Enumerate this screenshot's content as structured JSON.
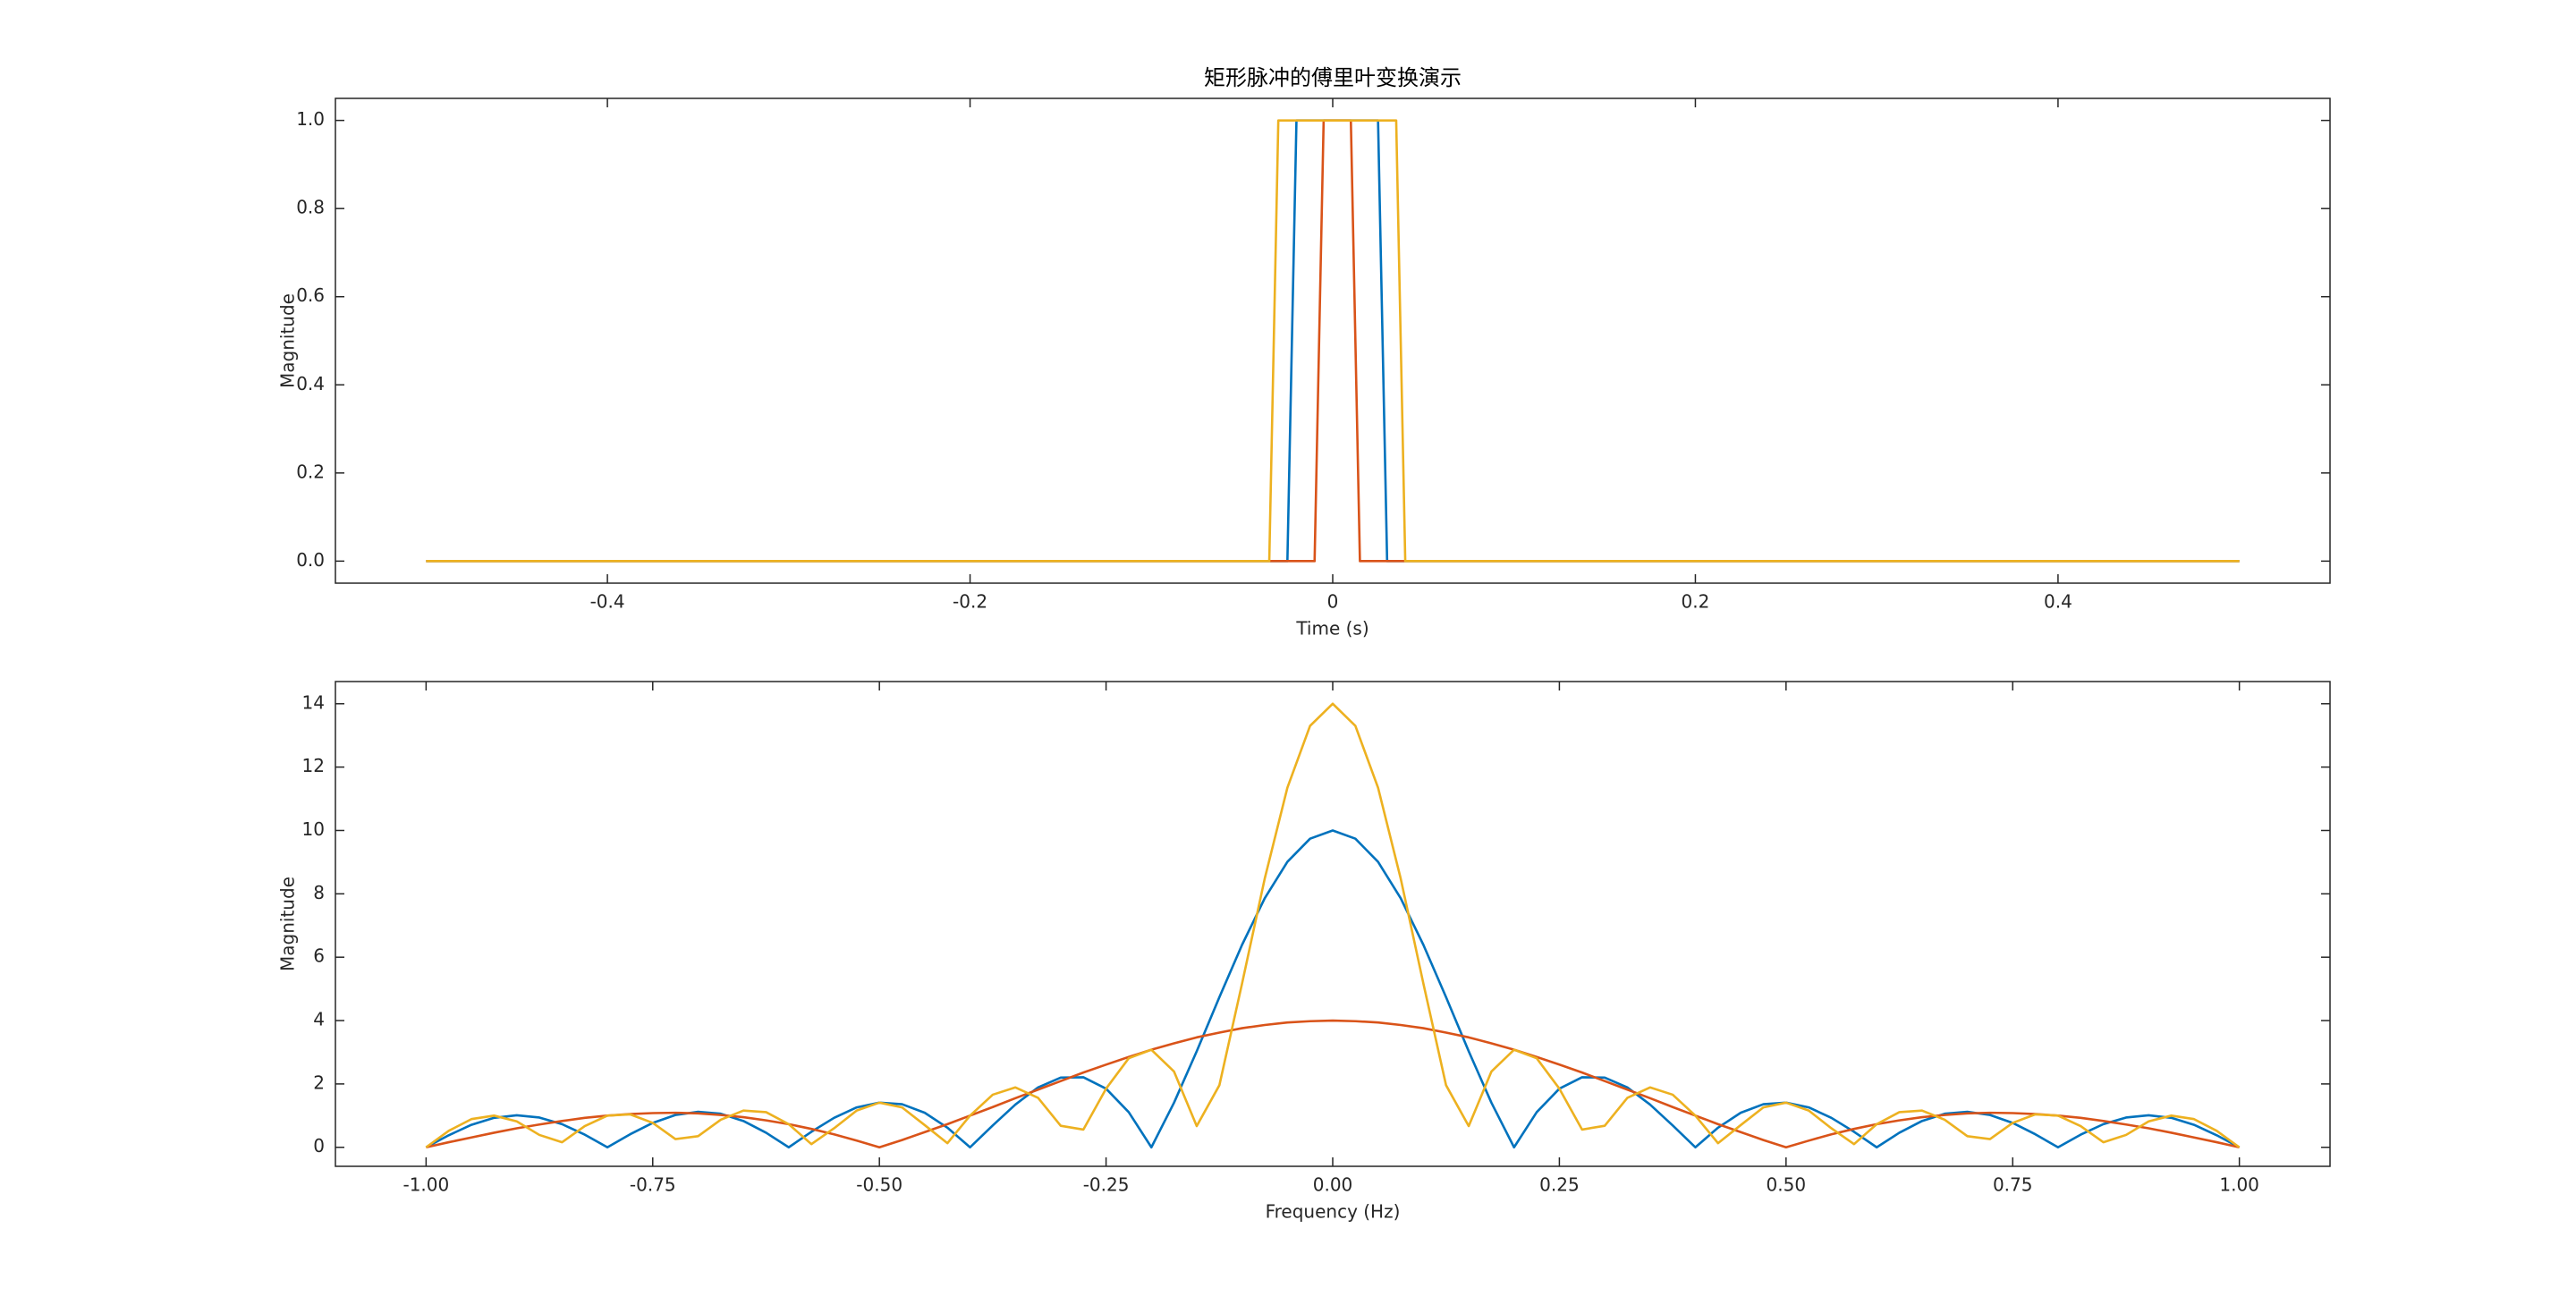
{
  "chart_data": [
    {
      "type": "line",
      "title": "矩形脉冲的傅里叶变换演示",
      "xlabel": "Time (s)",
      "ylabel": "Magnitude",
      "xlim": [
        -0.55,
        0.55
      ],
      "ylim": [
        -0.05,
        1.05
      ],
      "xticks": [
        -0.4,
        -0.2,
        0,
        0.2,
        0.4
      ],
      "yticks": [
        {
          "value": 0,
          "label": "0.0"
        },
        0.2,
        0.4,
        0.6,
        0.8,
        {
          "value": 1,
          "label": "1.0"
        }
      ],
      "series": [
        {
          "color": "#0072bd",
          "x": [
            -0.5,
            -0.025,
            -0.02,
            0.025,
            0.03,
            0.5
          ],
          "values": [
            0,
            0,
            1,
            1,
            0,
            0
          ]
        },
        {
          "color": "#d95319",
          "x": [
            -0.5,
            -0.01,
            -0.005,
            0.01,
            0.015,
            0.5
          ],
          "values": [
            0,
            0,
            1,
            1,
            0,
            0
          ]
        },
        {
          "color": "#edb120",
          "x": [
            -0.5,
            -0.035,
            -0.03,
            0.035,
            0.04,
            0.5
          ],
          "values": [
            0,
            0,
            1,
            1,
            0,
            0
          ]
        }
      ]
    },
    {
      "type": "line",
      "xlabel": "Frequency (Hz)",
      "ylabel": "Magnitude",
      "xlim": [
        -1.1,
        1.1
      ],
      "ylim": [
        -0.6,
        14.7
      ],
      "xticks": [
        {
          "value": -1,
          "label": "-1.00"
        },
        -0.75,
        {
          "value": -0.5,
          "label": "-0.50"
        },
        -0.25,
        {
          "value": 0,
          "label": "0.00"
        },
        0.25,
        {
          "value": 0.5,
          "label": "0.50"
        },
        0.75,
        {
          "value": 1,
          "label": "1.00"
        }
      ],
      "yticks": [
        0,
        2,
        4,
        6,
        8,
        10,
        12,
        14
      ],
      "x": [
        -1,
        -0.975,
        -0.95,
        -0.925,
        -0.9,
        -0.875,
        -0.85,
        -0.825,
        -0.8,
        -0.775,
        -0.75,
        -0.725,
        -0.7,
        -0.675,
        -0.65,
        -0.625,
        -0.6,
        -0.575,
        -0.55,
        -0.525,
        -0.5,
        -0.475,
        -0.45,
        -0.425,
        -0.4,
        -0.375,
        -0.35,
        -0.325,
        -0.3,
        -0.275,
        -0.25,
        -0.225,
        -0.2,
        -0.175,
        -0.15,
        -0.125,
        -0.1,
        -0.075,
        -0.05,
        -0.025,
        0,
        0.025,
        0.05,
        0.075,
        0.1,
        0.125,
        0.15,
        0.175,
        0.2,
        0.225,
        0.25,
        0.275,
        0.3,
        0.325,
        0.35,
        0.375,
        0.4,
        0.425,
        0.45,
        0.475,
        0.5,
        0.525,
        0.55,
        0.575,
        0.6,
        0.625,
        0.65,
        0.675,
        0.7,
        0.725,
        0.75,
        0.775,
        0.8,
        0.825,
        0.85,
        0.875,
        0.9,
        0.925,
        0.95,
        0.975,
        1
      ],
      "series": [
        {
          "color": "#0072bd",
          "values": [
            0,
            0.38,
            0.71,
            0.93,
            1.01,
            0.94,
            0.73,
            0.4,
            0,
            0.41,
            0.77,
            1.02,
            1.12,
            1.06,
            0.83,
            0.46,
            0,
            0.49,
            0.93,
            1.26,
            1.41,
            1.36,
            1.09,
            0.62,
            0,
            0.69,
            1.35,
            1.89,
            2.2,
            2.21,
            1.85,
            1.11,
            0,
            1.41,
            3.03,
            4.74,
            6.39,
            7.86,
            9.01,
            9.74,
            10,
            9.74,
            9.01,
            7.86,
            6.39,
            4.74,
            3.03,
            1.41,
            0,
            1.11,
            1.85,
            2.21,
            2.2,
            1.89,
            1.35,
            0.69,
            0,
            0.62,
            1.09,
            1.36,
            1.41,
            1.26,
            0.93,
            0.49,
            0,
            0.46,
            0.83,
            1.06,
            1.12,
            1.02,
            0.77,
            0.41,
            0,
            0.4,
            0.73,
            0.94,
            1.01,
            0.93,
            0.71,
            0.38,
            0
          ]
        },
        {
          "color": "#d95319",
          "values": [
            0,
            0.16,
            0.31,
            0.46,
            0.6,
            0.72,
            0.83,
            0.93,
            1,
            1.05,
            1.08,
            1.09,
            1.07,
            1.02,
            0.95,
            0.85,
            0.73,
            0.58,
            0.41,
            0.21,
            0,
            0.23,
            0.48,
            0.73,
            1,
            1.27,
            1.55,
            1.82,
            2.09,
            2.36,
            2.61,
            2.85,
            3.08,
            3.28,
            3.47,
            3.62,
            3.76,
            3.86,
            3.94,
            3.98,
            4,
            3.98,
            3.94,
            3.86,
            3.76,
            3.62,
            3.47,
            3.28,
            3.08,
            2.85,
            2.61,
            2.36,
            2.09,
            1.82,
            1.55,
            1.27,
            1,
            0.73,
            0.48,
            0.23,
            0,
            0.21,
            0.41,
            0.58,
            0.73,
            0.85,
            0.95,
            1.02,
            1.07,
            1.09,
            1.08,
            1.05,
            1,
            0.93,
            0.83,
            0.72,
            0.6,
            0.46,
            0.31,
            0.16,
            0
          ]
        },
        {
          "color": "#edb120",
          "values": [
            0,
            0.52,
            0.89,
            1,
            0.82,
            0.39,
            0.16,
            0.67,
            1,
            1.04,
            0.77,
            0.26,
            0.35,
            0.87,
            1.16,
            1.11,
            0.73,
            0.1,
            0.6,
            1.16,
            1.41,
            1.26,
            0.7,
            0.13,
            1,
            1.66,
            1.89,
            1.56,
            0.68,
            0.56,
            1.85,
            2.81,
            3.08,
            2.39,
            0.67,
            1.96,
            5.17,
            8.48,
            11.35,
            13.3,
            14,
            13.3,
            11.35,
            8.48,
            5.17,
            1.96,
            0.67,
            2.39,
            3.08,
            2.81,
            1.85,
            0.56,
            0.68,
            1.56,
            1.89,
            1.66,
            1,
            0.13,
            0.7,
            1.26,
            1.41,
            1.16,
            0.6,
            0.1,
            0.73,
            1.11,
            1.16,
            0.87,
            0.35,
            0.26,
            0.77,
            1.04,
            1,
            0.67,
            0.16,
            0.39,
            0.82,
            1,
            0.89,
            0.52,
            0
          ]
        }
      ]
    }
  ]
}
